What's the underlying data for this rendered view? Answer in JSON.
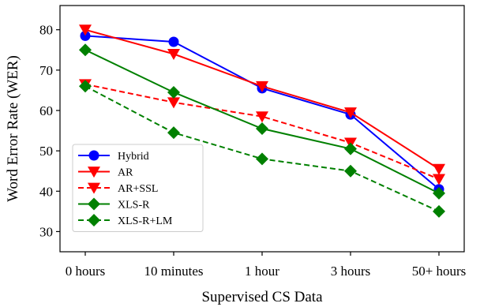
{
  "chart_data": {
    "type": "line",
    "xlabel": "Supervised CS Data",
    "ylabel": "Word Error Rate (WER)",
    "categories": [
      "0 hours",
      "10 minutes",
      "1 hour",
      "3 hours",
      "50+ hours"
    ],
    "ylim": [
      25,
      86
    ],
    "yticks": [
      30,
      40,
      50,
      60,
      70,
      80
    ],
    "grid": false,
    "legend_position": "bottom-left",
    "series": [
      {
        "name": "Hybrid",
        "color": "#0000ff",
        "linestyle": "solid",
        "marker": "circle",
        "values": [
          78.5,
          77.0,
          65.5,
          59.0,
          40.5
        ]
      },
      {
        "name": "AR",
        "color": "#ff0000",
        "linestyle": "solid",
        "marker": "triangle-down",
        "values": [
          80.0,
          74.0,
          66.0,
          59.5,
          45.5
        ]
      },
      {
        "name": "AR+SSL",
        "color": "#ff0000",
        "linestyle": "dashed",
        "marker": "triangle-down",
        "values": [
          66.5,
          62.0,
          58.5,
          52.0,
          43.0
        ]
      },
      {
        "name": "XLS-R",
        "color": "#008000",
        "linestyle": "solid",
        "marker": "diamond",
        "values": [
          75.0,
          64.5,
          55.5,
          50.5,
          39.5
        ]
      },
      {
        "name": "XLS-R+LM",
        "color": "#008000",
        "linestyle": "dashed",
        "marker": "diamond",
        "values": [
          66.0,
          54.5,
          48.0,
          45.0,
          35.0
        ]
      }
    ]
  }
}
